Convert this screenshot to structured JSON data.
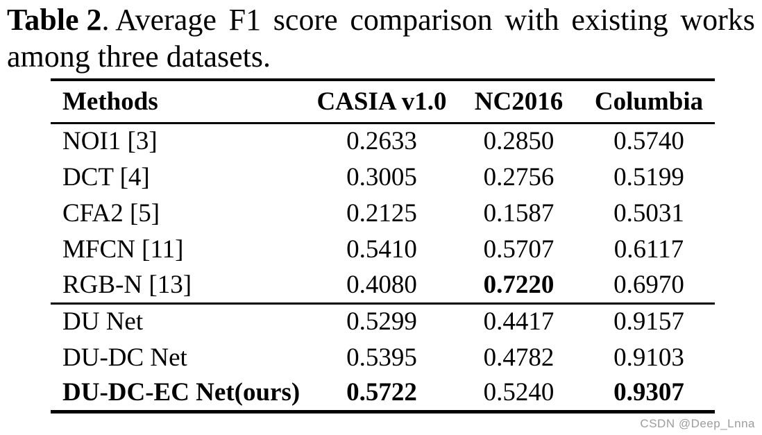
{
  "caption": {
    "label": "Table 2",
    "line1_rest": ". Average F1 score comparison with existing works",
    "line1_words": [
      ". Average",
      "F1",
      "score",
      "comparison",
      "with",
      "existing",
      "works"
    ],
    "line2": "among three datasets."
  },
  "table": {
    "columns": [
      "Methods",
      "CASIA v1.0",
      "NC2016",
      "Columbia"
    ],
    "sections": [
      {
        "rows": [
          {
            "method": "NOI1 [3]",
            "bold_method": false,
            "values": [
              "0.2633",
              "0.2850",
              "0.5740"
            ],
            "bold_values": [
              false,
              false,
              false
            ]
          },
          {
            "method": "DCT [4]",
            "bold_method": false,
            "values": [
              "0.3005",
              "0.2756",
              "0.5199"
            ],
            "bold_values": [
              false,
              false,
              false
            ]
          },
          {
            "method": "CFA2 [5]",
            "bold_method": false,
            "values": [
              "0.2125",
              "0.1587",
              "0.5031"
            ],
            "bold_values": [
              false,
              false,
              false
            ]
          },
          {
            "method": "MFCN [11]",
            "bold_method": false,
            "values": [
              "0.5410",
              "0.5707",
              "0.6117"
            ],
            "bold_values": [
              false,
              false,
              false
            ]
          },
          {
            "method": "RGB-N [13]",
            "bold_method": false,
            "values": [
              "0.4080",
              "0.7220",
              "0.6970"
            ],
            "bold_values": [
              false,
              true,
              false
            ]
          }
        ]
      },
      {
        "rows": [
          {
            "method": "DU Net",
            "bold_method": false,
            "values": [
              "0.5299",
              "0.4417",
              "0.9157"
            ],
            "bold_values": [
              false,
              false,
              false
            ]
          },
          {
            "method": "DU-DC Net",
            "bold_method": false,
            "values": [
              "0.5395",
              "0.4782",
              "0.9103"
            ],
            "bold_values": [
              false,
              false,
              false
            ]
          },
          {
            "method": "DU-DC-EC Net(ours)",
            "bold_method": true,
            "values": [
              "0.5722",
              "0.5240",
              "0.9307"
            ],
            "bold_values": [
              true,
              false,
              true
            ]
          }
        ]
      }
    ]
  },
  "watermark": {
    "text": "CSDN @Deep_Lnna",
    "color": "#9c9c9c"
  },
  "chart_data": {
    "type": "table",
    "title": "Table 2. Average F1 score comparison with existing works among three datasets.",
    "columns": [
      "Methods",
      "CASIA v1.0",
      "NC2016",
      "Columbia"
    ],
    "rows": [
      [
        "NOI1 [3]",
        0.2633,
        0.285,
        0.574
      ],
      [
        "DCT [4]",
        0.3005,
        0.2756,
        0.5199
      ],
      [
        "CFA2 [5]",
        0.2125,
        0.1587,
        0.5031
      ],
      [
        "MFCN [11]",
        0.541,
        0.5707,
        0.6117
      ],
      [
        "RGB-N [13]",
        0.408,
        0.722,
        0.697
      ],
      [
        "DU Net",
        0.5299,
        0.4417,
        0.9157
      ],
      [
        "DU-DC Net",
        0.5395,
        0.4782,
        0.9103
      ],
      [
        "DU-DC-EC Net(ours)",
        0.5722,
        0.524,
        0.9307
      ]
    ]
  }
}
